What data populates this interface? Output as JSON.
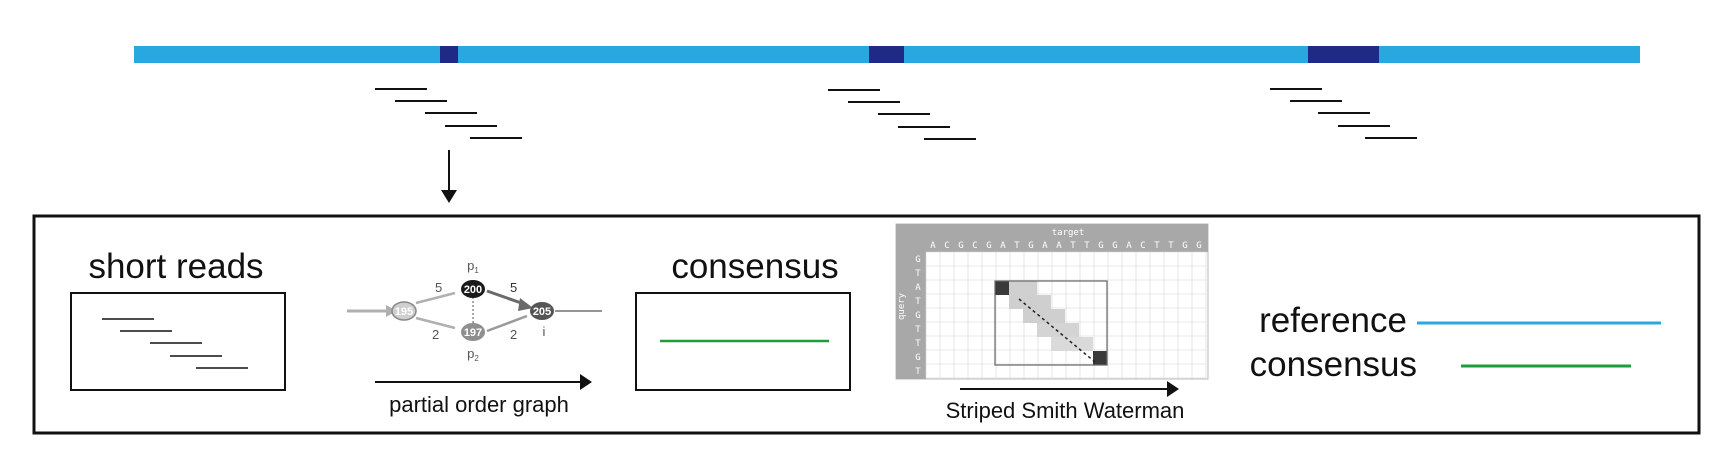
{
  "labels": {
    "short_reads": "short reads",
    "consensus_title": "consensus",
    "pog_caption": "partial order graph",
    "ssw_caption": "Striped Smith Waterman",
    "legend_reference": "reference",
    "legend_consensus": "consensus"
  },
  "graph": {
    "node_195": "195",
    "node_200": "200",
    "node_197": "197",
    "node_205": "205",
    "weight_top_left": "5",
    "weight_bottom_left": "2",
    "weight_top_right": "5",
    "weight_bottom_right": "2",
    "label_p1": "p",
    "label_p1_sub": "1",
    "label_p2": "p",
    "label_p2_sub": "2",
    "label_i": "i"
  },
  "matrix": {
    "target_label": "target",
    "query_label": "query",
    "target_seq": [
      "A",
      "C",
      "G",
      "C",
      "G",
      "A",
      "T",
      "G",
      "A",
      "A",
      "T",
      "T",
      "G",
      "G",
      "A",
      "C",
      "T",
      "T",
      "G",
      "G"
    ],
    "query_seq": [
      "G",
      "T",
      "A",
      "T",
      "G",
      "T",
      "T",
      "G",
      "T"
    ]
  },
  "colors": {
    "reference": "#29a8df",
    "variant_region": "#1f2a87",
    "consensus": "#1a9e3a",
    "frame": "#111111"
  }
}
